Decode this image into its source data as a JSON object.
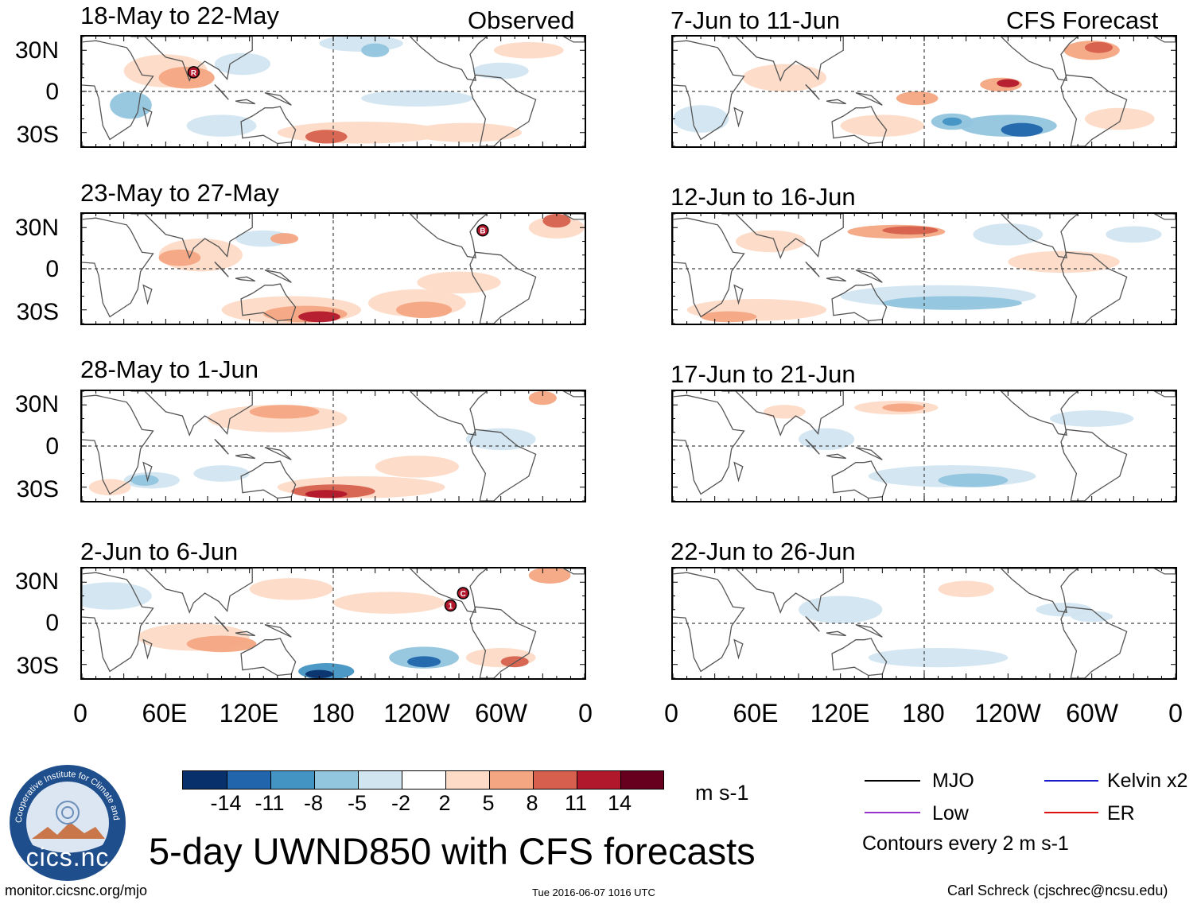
{
  "colors": {
    "neg14": "#08306b",
    "neg11": "#2166ac",
    "neg8": "#4393c3",
    "neg5": "#92c5de",
    "neg2": "#d1e5f0",
    "zero": "#ffffff",
    "pos2": "#fddbc7",
    "pos5": "#f4a582",
    "pos8": "#d6604d",
    "pos11": "#b2182b",
    "pos14": "#67001f",
    "land": "#555555",
    "mjo": "#000000",
    "low": "#9933cc",
    "kelvin": "#1a1acc",
    "er": "#dd1111"
  },
  "observed": {
    "label": "Observed",
    "panels": [
      {
        "period": "18-May to 22-May"
      },
      {
        "period": "23-May to 27-May"
      },
      {
        "period": "28-May to 1-Jun"
      },
      {
        "period": "2-Jun to 6-Jun"
      }
    ]
  },
  "forecast": {
    "label": "CFS Forecast",
    "panels": [
      {
        "period": "7-Jun to 11-Jun"
      },
      {
        "period": "12-Jun to 16-Jun"
      },
      {
        "period": "17-Jun to 21-Jun"
      },
      {
        "period": "22-Jun to 26-Jun"
      }
    ]
  },
  "lat_labels": [
    "30N",
    "0",
    "30S"
  ],
  "lon_labels": [
    "0",
    "60E",
    "120E",
    "180",
    "120W",
    "60W",
    "0"
  ],
  "storm_markers": [
    {
      "panel": "obs-1",
      "label": "R",
      "lon": 80,
      "lat": 14
    },
    {
      "panel": "obs-2",
      "label": "B",
      "lon": 287,
      "lat": 28
    },
    {
      "panel": "obs-4",
      "label": "1",
      "lon": 264,
      "lat": 13
    },
    {
      "panel": "obs-4",
      "label": "C",
      "lon": 273,
      "lat": 22
    }
  ],
  "colorbar": {
    "ticks": [
      "-14",
      "-11",
      "-8",
      "-5",
      "-2",
      "2",
      "5",
      "8",
      "11",
      "14"
    ],
    "units": "m s-1"
  },
  "legend": {
    "mjo": "MJO",
    "kelvin": "Kelvin x2",
    "low": "Low",
    "er": "ER",
    "contours_note": "Contours every 2 m s-1"
  },
  "logo": {
    "text": "cics.nc",
    "ring_text": "Cooperative Institute for Climate and Satellites"
  },
  "title": "5-day UWND850 with CFS forecasts",
  "footer": {
    "url": "monitor.cicsnc.org/mjo",
    "timestamp": "Tue 2016-06-07 1016 UTC",
    "author": "Carl Schreck (cjschrec@ncsu.edu)"
  }
}
